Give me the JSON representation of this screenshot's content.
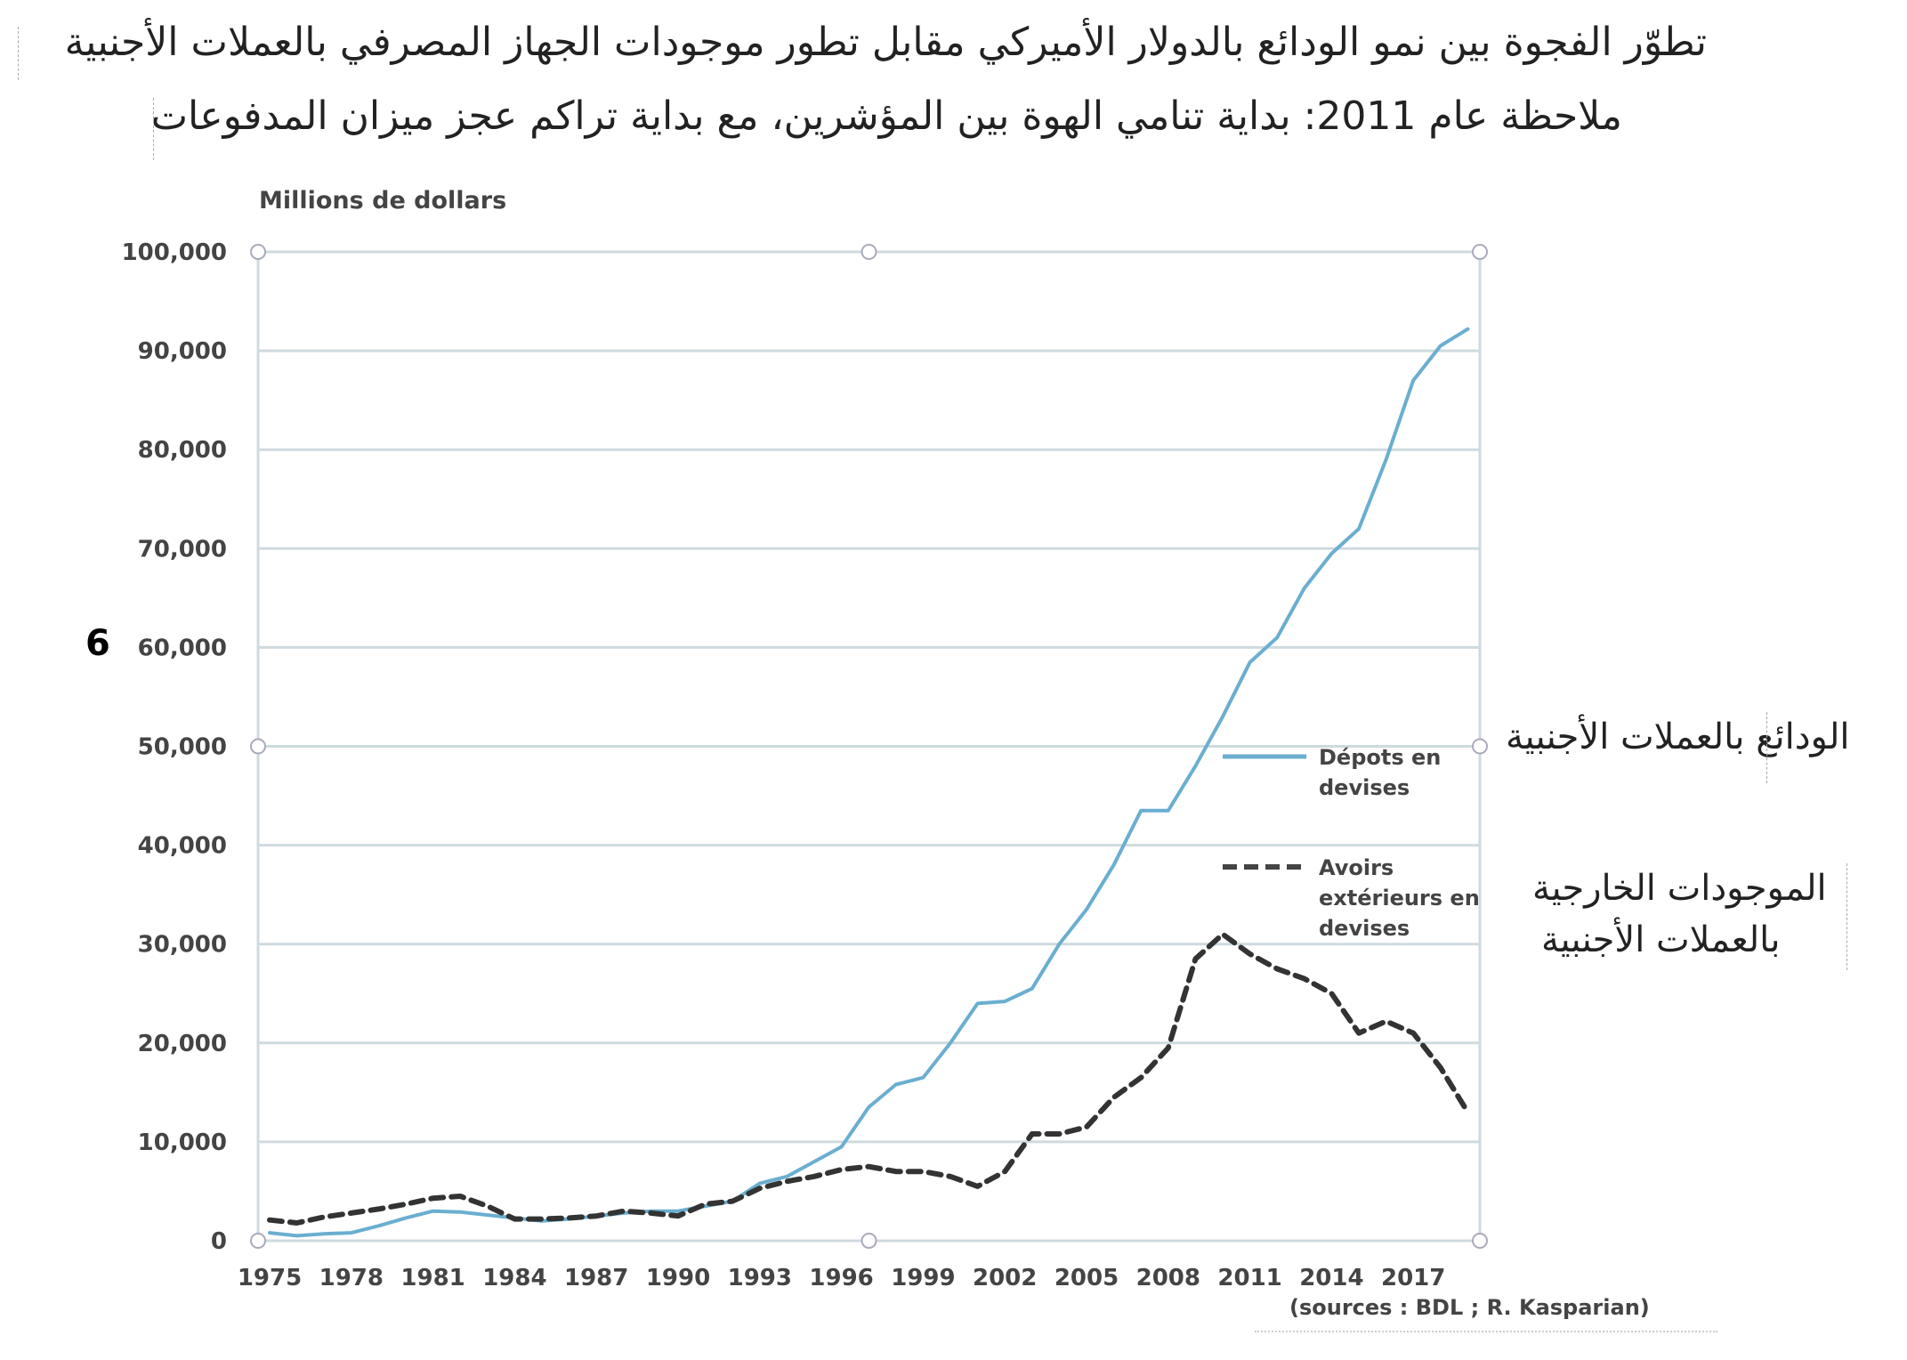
{
  "title": {
    "line1": "تطوّر الفجوة بين نمو الودائع بالدولار الأميركي مقابل تطور موجودات الجهاز المصرفي بالعملات الأجنبية",
    "line2": "ملاحظة عام 2011: بداية تنامي الهوة بين المؤشرين، مع بداية تراكم عجز ميزان المدفوعات"
  },
  "page_marker": "6",
  "annotations": {
    "deposits_ar": "الودائع بالعملات الأجنبية",
    "assets_ar_line1": "الموجودات الخارجية",
    "assets_ar_line2": "بالعملات الأجنبية"
  },
  "chart_data": {
    "type": "line",
    "ylabel": "Millions de dollars",
    "xlabel": "",
    "source": "(sources : BDL ; R. Kasparian)",
    "ylim": [
      0,
      100000
    ],
    "xlim": [
      1975,
      2019
    ],
    "grid": true,
    "legend_placement": "right",
    "yticks": [
      "0",
      "10,000",
      "20,000",
      "30,000",
      "40,000",
      "50,000",
      "60,000",
      "70,000",
      "80,000",
      "90,000",
      "100,000"
    ],
    "ytick_values": [
      0,
      10000,
      20000,
      30000,
      40000,
      50000,
      60000,
      70000,
      80000,
      90000,
      100000
    ],
    "xticks": [
      "1975",
      "1978",
      "1981",
      "1984",
      "1987",
      "1990",
      "1993",
      "1996",
      "1999",
      "2002",
      "2005",
      "2008",
      "2011",
      "2014",
      "2017"
    ],
    "x": [
      1975,
      1976,
      1977,
      1978,
      1979,
      1980,
      1981,
      1982,
      1983,
      1984,
      1985,
      1986,
      1987,
      1988,
      1989,
      1990,
      1991,
      1992,
      1993,
      1994,
      1995,
      1996,
      1997,
      1998,
      1999,
      2000,
      2001,
      2002,
      2003,
      2004,
      2005,
      2006,
      2007,
      2008,
      2009,
      2010,
      2011,
      2012,
      2013,
      2014,
      2015,
      2016,
      2017,
      2018,
      2019
    ],
    "series": [
      {
        "name": "Dépots en devises",
        "legend_line1": "Dépots en",
        "legend_line2": "devises",
        "color": "#6aaed0",
        "style": "solid",
        "values": [
          800,
          500,
          700,
          800,
          1500,
          2300,
          3000,
          2900,
          2600,
          2300,
          2000,
          2200,
          2500,
          2800,
          3000,
          3000,
          3500,
          4000,
          5800,
          6500,
          8000,
          9500,
          13500,
          15800,
          16500,
          20000,
          24000,
          24200,
          25500,
          30000,
          33500,
          38000,
          43500,
          43500,
          48000,
          53000,
          58500,
          61000,
          66000,
          69500,
          72000,
          79000,
          87000,
          90500,
          92200
        ]
      },
      {
        "name": "Avoirs extérieurs en devises",
        "legend_line1": "Avoirs",
        "legend_line2": "extérieurs en",
        "legend_line3": "devises",
        "color": "#333333",
        "style": "dashed",
        "values": [
          2100,
          1800,
          2400,
          2800,
          3200,
          3700,
          4300,
          4500,
          3500,
          2200,
          2200,
          2300,
          2500,
          3000,
          2800,
          2500,
          3700,
          4000,
          5300,
          6000,
          6500,
          7200,
          7500,
          7000,
          7000,
          6500,
          5500,
          7000,
          10800,
          10800,
          11500,
          14500,
          16500,
          19500,
          28500,
          31000,
          29000,
          27500,
          26500,
          25000,
          21000,
          22200,
          21000,
          17500,
          13000
        ]
      }
    ]
  }
}
